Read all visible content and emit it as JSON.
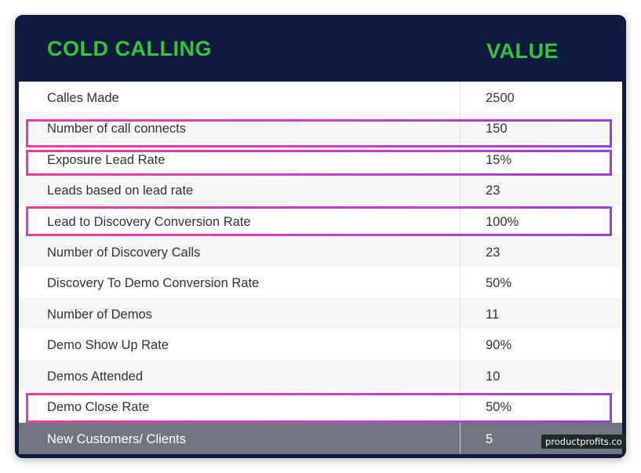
{
  "header": {
    "col1": "COLD CALLING",
    "col2": "VALUE"
  },
  "rows": [
    {
      "label": "Calles Made",
      "value": "2500"
    },
    {
      "label": "Number of call connects",
      "value": "150"
    },
    {
      "label": "Exposure Lead Rate",
      "value": "15%"
    },
    {
      "label": "Leads based on lead rate",
      "value": "23"
    },
    {
      "label": "Lead to Discovery Conversion Rate",
      "value": "100%"
    },
    {
      "label": "Number of Discovery Calls",
      "value": "23"
    },
    {
      "label": "Discovery To Demo Conversion Rate",
      "value": "50%"
    },
    {
      "label": "Number of Demos",
      "value": "11"
    },
    {
      "label": "Demo Show Up Rate",
      "value": "90%"
    },
    {
      "label": "Demos Attended",
      "value": "10"
    },
    {
      "label": "Demo Close Rate",
      "value": "50%"
    }
  ],
  "total": {
    "label": "New Customers/ Clients",
    "value": "5"
  },
  "watermark": "productprofits.co",
  "colors": {
    "header_bg": "#0e1b3e",
    "header_text": "#35c43a",
    "highlight": "#d63fb4"
  }
}
